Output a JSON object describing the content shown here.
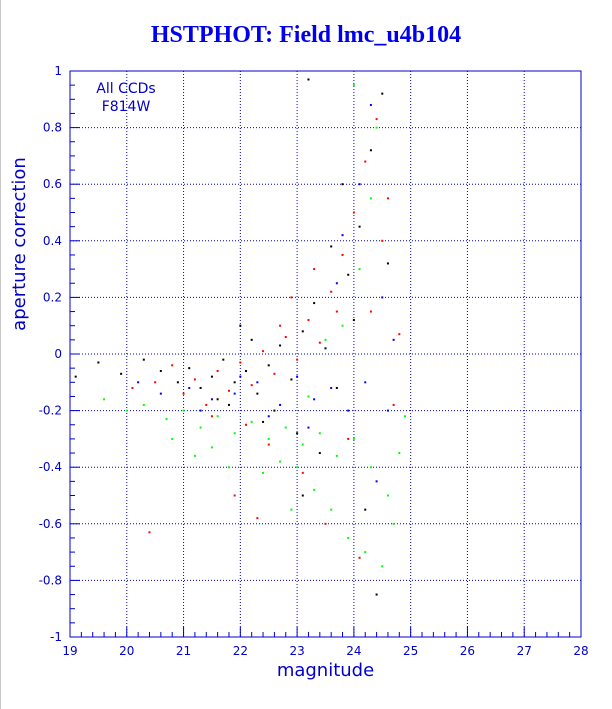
{
  "title": "HSTPHOT: Field lmc_u4b104",
  "chart_data": {
    "type": "scatter",
    "title": "HSTPHOT: Field lmc_u4b104",
    "xlabel": "magnitude",
    "ylabel": "aperture correction",
    "xlim": [
      19,
      28
    ],
    "ylim": [
      -1,
      1
    ],
    "xticks": [
      19,
      20,
      21,
      22,
      23,
      24,
      25,
      26,
      27,
      28
    ],
    "yticks": [
      -1,
      -0.8,
      -0.6,
      -0.4,
      -0.2,
      0,
      0.2,
      0.4,
      0.6,
      0.8,
      1
    ],
    "xtick_labels": [
      "19",
      "20",
      "21",
      "22",
      "23",
      "24",
      "25",
      "26",
      "27",
      "28"
    ],
    "ytick_labels": [
      "-1",
      "-0.8",
      "-0.6",
      "-0.4",
      "-0.2",
      "0",
      "0.2",
      "0.4",
      "0.6",
      "0.8",
      "1"
    ],
    "grid": true,
    "annotation": [
      "All CCDs",
      "F814W"
    ],
    "colors": {
      "axis": "#0000cc",
      "grid": "#0000cc"
    },
    "series": [
      {
        "color": "#000000",
        "values": [
          [
            19.1,
            -0.08
          ],
          [
            19.5,
            -0.03
          ],
          [
            19.9,
            -0.07
          ],
          [
            20.3,
            -0.02
          ],
          [
            20.6,
            -0.06
          ],
          [
            20.9,
            -0.1
          ],
          [
            21.1,
            -0.05
          ],
          [
            21.3,
            -0.12
          ],
          [
            21.5,
            -0.08
          ],
          [
            21.7,
            -0.02
          ],
          [
            21.9,
            -0.1
          ],
          [
            22.1,
            -0.06
          ],
          [
            22.3,
            -0.14
          ],
          [
            22.5,
            -0.04
          ],
          [
            22.7,
            0.03
          ],
          [
            22.9,
            -0.09
          ],
          [
            23.1,
            0.08
          ],
          [
            23.3,
            0.18
          ],
          [
            23.5,
            0.02
          ],
          [
            23.7,
            -0.12
          ],
          [
            23.9,
            0.28
          ],
          [
            24.1,
            0.45
          ],
          [
            24.3,
            0.72
          ],
          [
            24.5,
            0.92
          ],
          [
            22.6,
            -0.2
          ],
          [
            23.0,
            -0.28
          ],
          [
            23.4,
            -0.35
          ],
          [
            23.8,
            0.6
          ],
          [
            24.2,
            -0.55
          ],
          [
            24.4,
            -0.85
          ],
          [
            23.1,
            -0.5
          ],
          [
            22.4,
            -0.24
          ],
          [
            21.8,
            -0.18
          ],
          [
            22.2,
            0.05
          ],
          [
            23.6,
            0.38
          ],
          [
            24.0,
            0.12
          ],
          [
            24.6,
            0.32
          ],
          [
            23.2,
            0.97
          ],
          [
            22.0,
            0.1
          ],
          [
            21.6,
            -0.16
          ]
        ]
      },
      {
        "color": "#ff0000",
        "values": [
          [
            20.1,
            -0.12
          ],
          [
            20.5,
            -0.1
          ],
          [
            20.8,
            -0.04
          ],
          [
            21.0,
            -0.14
          ],
          [
            21.2,
            -0.09
          ],
          [
            21.4,
            -0.18
          ],
          [
            21.6,
            -0.06
          ],
          [
            21.8,
            -0.13
          ],
          [
            22.0,
            -0.03
          ],
          [
            22.2,
            -0.11
          ],
          [
            22.4,
            0.01
          ],
          [
            22.6,
            -0.07
          ],
          [
            22.8,
            0.06
          ],
          [
            23.0,
            -0.02
          ],
          [
            23.2,
            0.12
          ],
          [
            23.4,
            0.04
          ],
          [
            23.6,
            0.22
          ],
          [
            23.8,
            0.35
          ],
          [
            24.0,
            0.5
          ],
          [
            24.2,
            0.68
          ],
          [
            24.4,
            0.83
          ],
          [
            24.6,
            0.55
          ],
          [
            22.1,
            -0.25
          ],
          [
            22.5,
            -0.32
          ],
          [
            23.1,
            -0.42
          ],
          [
            23.5,
            -0.6
          ],
          [
            24.1,
            -0.72
          ],
          [
            20.4,
            -0.63
          ],
          [
            21.9,
            -0.5
          ],
          [
            22.9,
            0.2
          ],
          [
            23.3,
            0.3
          ],
          [
            24.3,
            0.15
          ],
          [
            24.7,
            -0.18
          ],
          [
            23.9,
            -0.3
          ],
          [
            22.3,
            -0.58
          ],
          [
            21.5,
            -0.22
          ],
          [
            23.7,
            0.15
          ],
          [
            24.5,
            0.4
          ],
          [
            22.7,
            0.1
          ],
          [
            24.8,
            0.07
          ]
        ]
      },
      {
        "color": "#00ff00",
        "values": [
          [
            19.6,
            -0.16
          ],
          [
            20.0,
            -0.2
          ],
          [
            20.3,
            -0.18
          ],
          [
            20.7,
            -0.23
          ],
          [
            21.0,
            -0.2
          ],
          [
            21.3,
            -0.26
          ],
          [
            21.6,
            -0.22
          ],
          [
            21.9,
            -0.28
          ],
          [
            22.2,
            -0.24
          ],
          [
            22.5,
            -0.3
          ],
          [
            22.8,
            -0.26
          ],
          [
            23.1,
            -0.32
          ],
          [
            23.4,
            -0.28
          ],
          [
            23.7,
            -0.36
          ],
          [
            24.0,
            -0.3
          ],
          [
            24.3,
            -0.4
          ],
          [
            24.6,
            -0.5
          ],
          [
            24.8,
            -0.35
          ],
          [
            23.0,
            -0.4
          ],
          [
            23.3,
            -0.48
          ],
          [
            23.6,
            -0.55
          ],
          [
            23.9,
            -0.65
          ],
          [
            24.2,
            -0.7
          ],
          [
            24.5,
            -0.75
          ],
          [
            22.7,
            -0.38
          ],
          [
            22.4,
            -0.42
          ],
          [
            21.5,
            -0.33
          ],
          [
            20.8,
            -0.3
          ],
          [
            21.2,
            -0.36
          ],
          [
            23.8,
            0.1
          ],
          [
            24.1,
            0.3
          ],
          [
            24.3,
            0.55
          ],
          [
            24.4,
            0.8
          ],
          [
            24.0,
            0.95
          ],
          [
            23.5,
            0.05
          ],
          [
            24.7,
            -0.6
          ],
          [
            22.9,
            -0.55
          ],
          [
            23.2,
            -0.15
          ],
          [
            24.9,
            -0.22
          ],
          [
            21.8,
            -0.4
          ]
        ]
      },
      {
        "color": "#0000ff",
        "values": [
          [
            20.2,
            -0.1
          ],
          [
            20.6,
            -0.14
          ],
          [
            21.1,
            -0.12
          ],
          [
            21.5,
            -0.16
          ],
          [
            21.9,
            -0.14
          ],
          [
            22.3,
            -0.1
          ],
          [
            22.7,
            -0.18
          ],
          [
            23.0,
            -0.08
          ],
          [
            23.3,
            -0.16
          ],
          [
            23.6,
            -0.12
          ],
          [
            23.9,
            -0.2
          ],
          [
            24.2,
            -0.1
          ],
          [
            24.5,
            0.2
          ],
          [
            24.3,
            0.88
          ],
          [
            23.8,
            0.42
          ],
          [
            24.1,
            0.6
          ],
          [
            22.5,
            -0.22
          ],
          [
            23.2,
            -0.26
          ],
          [
            23.7,
            0.25
          ],
          [
            24.4,
            -0.45
          ],
          [
            24.6,
            -0.2
          ],
          [
            22.0,
            -0.08
          ],
          [
            21.3,
            -0.2
          ],
          [
            24.7,
            0.05
          ]
        ]
      }
    ]
  }
}
